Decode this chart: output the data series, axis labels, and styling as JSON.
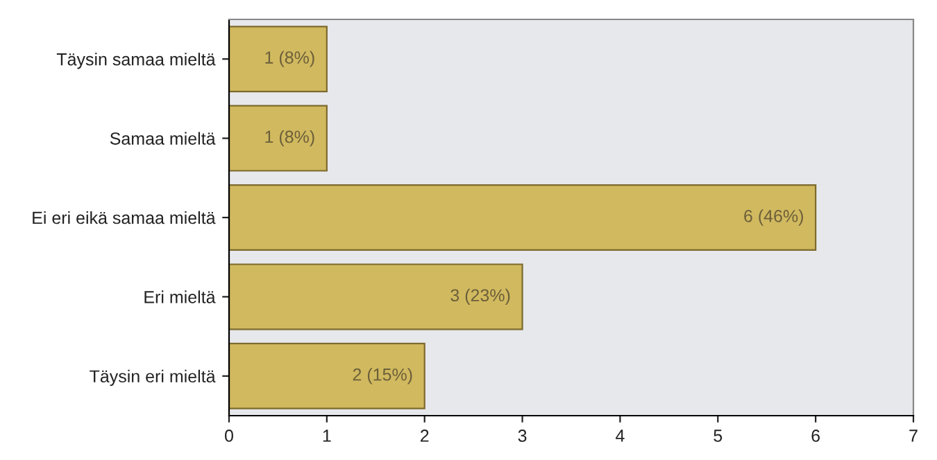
{
  "chart_data": {
    "type": "bar",
    "orientation": "horizontal",
    "categories": [
      "Täysin samaa mieltä",
      "Samaa mieltä",
      "Ei eri eikä samaa mieltä",
      "Eri mieltä",
      "Täysin eri mieltä"
    ],
    "values": [
      1,
      1,
      6,
      3,
      2
    ],
    "value_labels": [
      "1 (8%)",
      "1 (8%)",
      "6 (46%)",
      "3 (23%)",
      "2 (15%)"
    ],
    "color": "#d1b95f",
    "xlim": [
      0,
      7
    ],
    "xticks": [
      0,
      1,
      2,
      3,
      4,
      5,
      6,
      7
    ],
    "grid": false,
    "legend": false
  }
}
